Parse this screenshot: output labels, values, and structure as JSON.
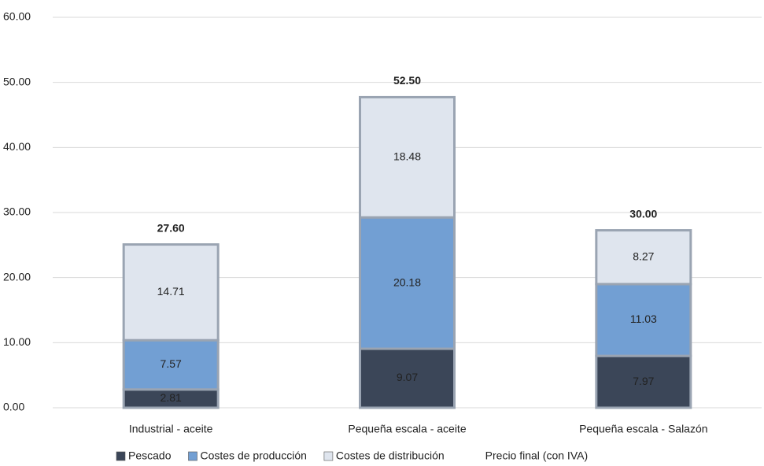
{
  "chart_data": {
    "type": "stacked_bar",
    "categories": [
      "Industrial - aceite",
      "Pequeña escala - aceite",
      "Pequeña escala - Salazón"
    ],
    "series": [
      {
        "name": "Pescado",
        "color": "#3b4658",
        "values": [
          2.81,
          9.07,
          7.97
        ]
      },
      {
        "name": "Costes de producción",
        "color": "#729fd3",
        "values": [
          7.57,
          20.18,
          11.03
        ]
      },
      {
        "name": "Costes de distribución",
        "color": "#dfe5ee",
        "values": [
          14.71,
          18.48,
          8.27
        ]
      }
    ],
    "total_series": {
      "name": "Precio final (con IVA)",
      "values": [
        27.6,
        52.5,
        30.0
      ],
      "value_labels": [
        "27.60",
        "52.50",
        "30.00"
      ]
    },
    "ylim": [
      0,
      60
    ],
    "yticks": [
      {
        "value": 0,
        "label": "0.00"
      },
      {
        "value": 10,
        "label": "10.00"
      },
      {
        "value": 20,
        "label": "20.00"
      },
      {
        "value": 30,
        "label": "30.00"
      },
      {
        "value": 40,
        "label": "40.00"
      },
      {
        "value": 50,
        "label": "50.00"
      },
      {
        "value": 60,
        "label": "60.00"
      }
    ],
    "grid": true
  }
}
